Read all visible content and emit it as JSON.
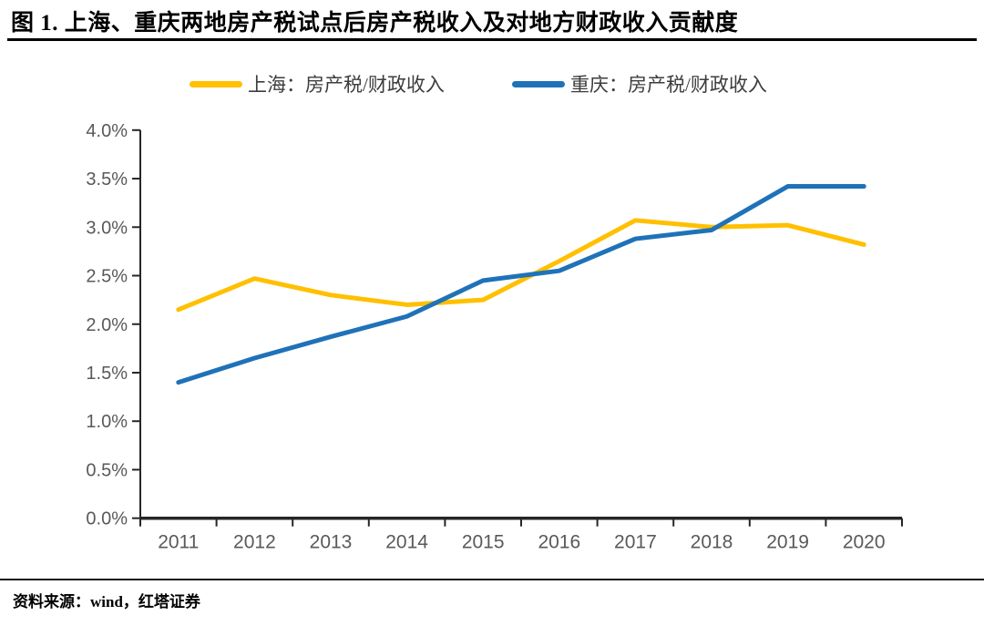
{
  "header": {
    "title": "图 1. 上海、重庆两地房产税试点后房产税收入及对地方财政收入贡献度"
  },
  "footer": {
    "source": "资料来源：wind，红塔证券"
  },
  "chart_data": {
    "type": "line",
    "title": "上海、重庆两地房产税试点后房产税收入及对地方财政收入贡献度",
    "categories": [
      "2011",
      "2012",
      "2013",
      "2014",
      "2015",
      "2016",
      "2017",
      "2018",
      "2019",
      "2020"
    ],
    "series": [
      {
        "name": "上海：房产税/财政收入",
        "color": "#FFC000",
        "values": [
          2.15,
          2.47,
          2.3,
          2.2,
          2.25,
          2.65,
          3.07,
          3.0,
          3.02,
          2.82
        ]
      },
      {
        "name": "重庆：房产税/财政收入",
        "color": "#1F72B8",
        "values": [
          1.4,
          1.65,
          1.87,
          2.08,
          2.45,
          2.55,
          2.88,
          2.97,
          3.42,
          3.42
        ]
      }
    ],
    "xlabel": "",
    "ylabel": "",
    "ylim": [
      0,
      4
    ],
    "ytick_step": 0.5,
    "ytick_labels": [
      "0.0%",
      "0.5%",
      "1.0%",
      "1.5%",
      "2.0%",
      "2.5%",
      "3.0%",
      "3.5%",
      "4.0%"
    ],
    "grid": false,
    "legend_position": "top",
    "axis_color": "#262626",
    "tick_label_color": "#595959",
    "line_width": 5
  }
}
